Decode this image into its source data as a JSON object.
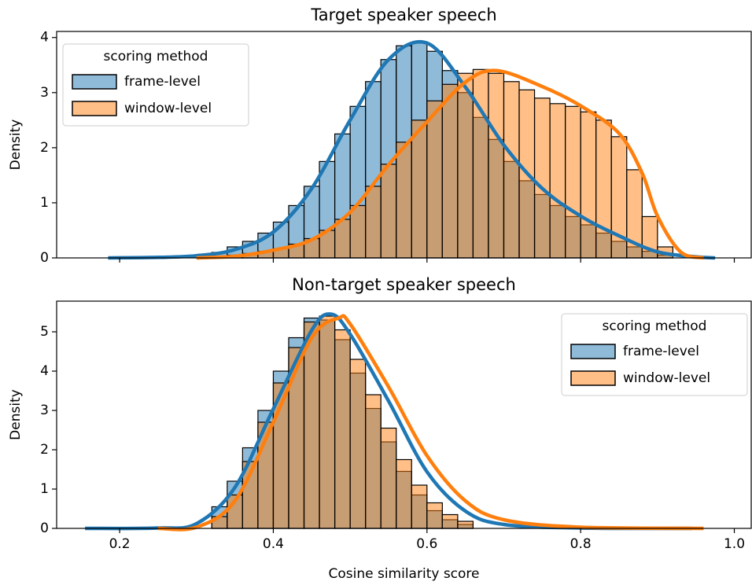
{
  "chart_data": [
    {
      "type": "histogram",
      "title": "Target speaker speech",
      "ylabel": "Density",
      "bins": [
        0.32,
        0.34,
        0.36,
        0.38,
        0.4,
        0.42,
        0.44,
        0.46,
        0.48,
        0.5,
        0.52,
        0.54,
        0.56,
        0.58,
        0.6,
        0.62,
        0.64,
        0.66,
        0.68,
        0.7,
        0.72,
        0.74,
        0.76,
        0.78,
        0.8,
        0.82,
        0.84,
        0.86,
        0.88,
        0.9,
        0.92
      ],
      "series": [
        {
          "name": "frame-level",
          "color": "#1f77b4",
          "values": [
            0.1,
            0.2,
            0.3,
            0.45,
            0.65,
            0.95,
            1.3,
            1.75,
            2.25,
            2.75,
            3.2,
            3.6,
            3.85,
            3.9,
            3.75,
            3.4,
            3.0,
            2.55,
            2.15,
            1.75,
            1.4,
            1.15,
            0.95,
            0.75,
            0.6,
            0.45,
            0.3,
            0.2,
            0.12,
            0.05
          ],
          "kde_x": [
            0.185,
            0.25,
            0.3,
            0.35,
            0.4,
            0.45,
            0.5,
            0.55,
            0.6,
            0.65,
            0.7,
            0.75,
            0.8,
            0.85,
            0.9,
            0.95,
            0.975
          ],
          "kde": [
            0,
            0.01,
            0.04,
            0.15,
            0.47,
            1.26,
            2.5,
            3.6,
            3.9,
            3.1,
            2.05,
            1.26,
            0.76,
            0.4,
            0.11,
            0.02,
            0
          ]
        },
        {
          "name": "window-level",
          "color": "#ff7f0e",
          "values": [
            0.03,
            0.05,
            0.08,
            0.12,
            0.17,
            0.25,
            0.35,
            0.5,
            0.7,
            0.95,
            1.3,
            1.7,
            2.1,
            2.5,
            2.85,
            3.15,
            3.35,
            3.42,
            3.35,
            3.2,
            3.05,
            2.9,
            2.8,
            2.75,
            2.65,
            2.5,
            2.2,
            1.6,
            0.75,
            0.2
          ],
          "kde_x": [
            0.3,
            0.35,
            0.4,
            0.45,
            0.5,
            0.55,
            0.6,
            0.65,
            0.69,
            0.75,
            0.8,
            0.85,
            0.88,
            0.9,
            0.93,
            0.96
          ],
          "kde": [
            0,
            0.03,
            0.14,
            0.33,
            0.83,
            1.69,
            2.47,
            3.19,
            3.4,
            3.11,
            2.76,
            2.26,
            1.54,
            0.76,
            0.11,
            0
          ]
        }
      ],
      "xlim": [
        0.118,
        1.022
      ],
      "xticks": [
        0.2,
        0.4,
        0.6,
        0.8,
        1
      ],
      "ylim": [
        0,
        4.11
      ],
      "yticks": [
        0,
        1,
        2,
        3,
        4
      ],
      "legend_title": "scoring method",
      "legend": "upper left"
    },
    {
      "type": "histogram",
      "title": "Non-target speaker speech",
      "ylabel": "Density",
      "xlabel": "Cosine similarity score",
      "bins": [
        0.32,
        0.34,
        0.36,
        0.38,
        0.4,
        0.42,
        0.44,
        0.46,
        0.48,
        0.5,
        0.52,
        0.54,
        0.56,
        0.58,
        0.6,
        0.62,
        0.64,
        0.66
      ],
      "series": [
        {
          "name": "frame-level",
          "color": "#1f77b4",
          "values": [
            0.55,
            1.2,
            2.05,
            3.0,
            4.0,
            4.85,
            5.35,
            5.3,
            4.8,
            3.95,
            3.05,
            2.2,
            1.45,
            0.85,
            0.45,
            0.22,
            0.1
          ],
          "kde_x": [
            0.155,
            0.25,
            0.3,
            0.35,
            0.4,
            0.45,
            0.475,
            0.5,
            0.55,
            0.6,
            0.65,
            0.7,
            0.8,
            0.945
          ],
          "kde": [
            0,
            0.01,
            0.12,
            1.04,
            3.04,
            5.04,
            5.45,
            4.94,
            3.24,
            1.44,
            0.44,
            0.1,
            0.01,
            0
          ]
        },
        {
          "name": "window-level",
          "color": "#ff7f0e",
          "values": [
            0.3,
            0.85,
            1.7,
            2.7,
            3.7,
            4.6,
            5.25,
            5.4,
            5.05,
            4.3,
            3.4,
            2.55,
            1.75,
            1.1,
            0.65,
            0.35,
            0.18
          ],
          "kde_x": [
            0.25,
            0.3,
            0.35,
            0.4,
            0.45,
            0.485,
            0.5,
            0.55,
            0.6,
            0.65,
            0.7,
            0.8,
            0.96
          ],
          "kde": [
            0,
            0.03,
            0.7,
            2.7,
            4.85,
            5.35,
            5.2,
            3.6,
            1.85,
            0.7,
            0.22,
            0.03,
            0
          ]
        }
      ],
      "xlim": [
        0.118,
        1.022
      ],
      "xticks": [
        0.2,
        0.4,
        0.6,
        0.8,
        {
          "value": 1,
          "label": "1.0"
        }
      ],
      "ylim": [
        0,
        5.78
      ],
      "yticks": [
        0,
        1,
        2,
        3,
        4,
        5
      ],
      "legend_title": "scoring method",
      "legend": "upper right"
    }
  ]
}
